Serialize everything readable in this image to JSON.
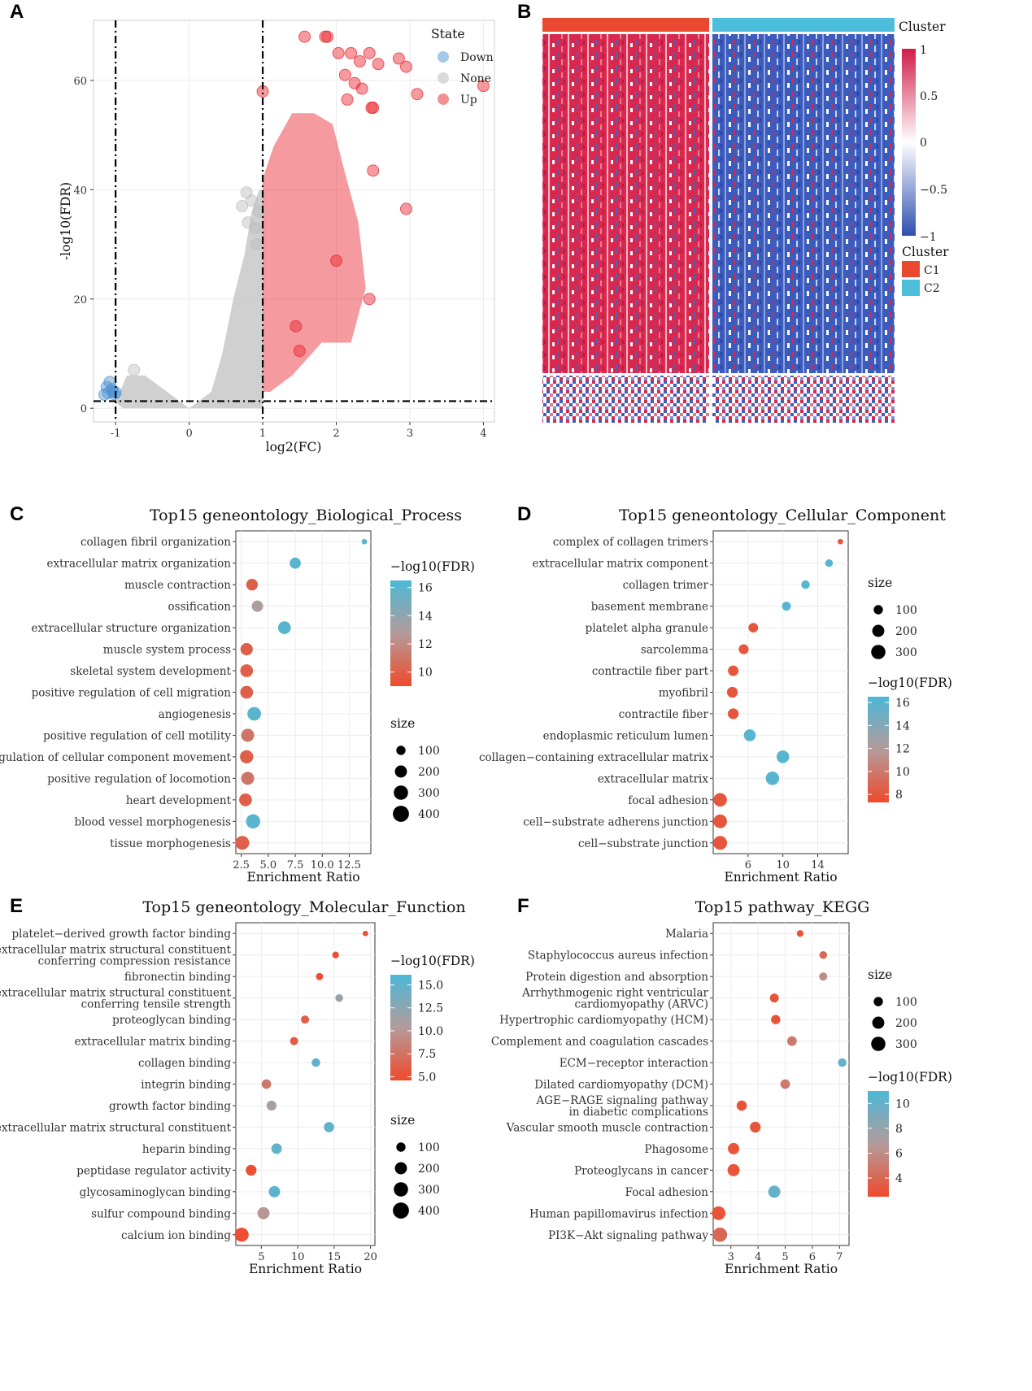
{
  "chart_data": [
    {
      "panel": "A",
      "type": "scatter",
      "title": "",
      "xlabel": "log2(FC)",
      "ylabel": "-log10(FDR)",
      "xlim": [
        -1.3,
        4.15
      ],
      "ylim": [
        -2.5,
        71
      ],
      "xticks": [
        "-1",
        "0",
        "1",
        "2",
        "3",
        "4"
      ],
      "yticks": [
        "0",
        "20",
        "40",
        "60"
      ],
      "thresholds": {
        "x": [
          -1,
          1
        ],
        "y": 1.3
      },
      "legend": {
        "title": "State",
        "position": "top-right",
        "entries": [
          {
            "label": "Down",
            "color": "#4e92d1"
          },
          {
            "label": "None",
            "color": "#bdbdbd"
          },
          {
            "label": "Up",
            "color": "#e8222a"
          }
        ]
      },
      "series": [
        {
          "name": "Down",
          "color": "#4e92d1",
          "x": [
            -1.08,
            -1.05,
            -1.1,
            -1.02,
            -1.15,
            -1.04,
            -1.12,
            -1.0
          ],
          "y": [
            4.8,
            3.5,
            2.8,
            2.6,
            2.5,
            3.1,
            3.9,
            2.9
          ]
        },
        {
          "name": "None",
          "color": "#bdbdbd",
          "x": [
            0.78,
            0.72,
            0.85,
            -0.75,
            0.92,
            0.8,
            0.9,
            0.95
          ],
          "y": [
            39.5,
            37,
            38,
            7,
            30,
            34,
            33,
            36
          ]
        },
        {
          "name": "Up",
          "color": "#e8222a",
          "x": [
            1.57,
            1.85,
            1.88,
            2.03,
            2.2,
            2.32,
            2.12,
            2.25,
            2.45,
            2.57,
            2.85,
            2.95,
            3.1,
            4.0,
            1.0,
            2.15,
            2.35,
            2.48,
            2.5,
            2.95,
            2.5,
            2.45,
            2.0,
            1.5,
            1.45
          ],
          "y": [
            68,
            68,
            68,
            65,
            65,
            63.5,
            61,
            59.5,
            65,
            63,
            64,
            62.5,
            57.5,
            59,
            58,
            56.5,
            58.5,
            55,
            55,
            36.5,
            43.5,
            20,
            27,
            10.5,
            15
          ]
        }
      ]
    },
    {
      "panel": "B",
      "type": "heatmap",
      "title": "",
      "scale": {
        "title": "Cluster",
        "ticks": [
          "1",
          "0.5",
          "0",
          "−0.5",
          "−1"
        ],
        "low": "#2e4fb0",
        "mid": "#ffffff",
        "high": "#d01c47"
      },
      "clusters": {
        "title": "Cluster",
        "entries": [
          {
            "label": "C1",
            "color": "#e8492f"
          },
          {
            "label": "C2",
            "color": "#4cbddb"
          }
        ]
      }
    },
    {
      "panel": "C",
      "type": "scatter",
      "title": "Top15 geneontology_Biological_Process",
      "xlabel": "Enrichment Ratio",
      "xticks": [
        "2.5",
        "5.0",
        "7.5",
        "10.0",
        "12.5"
      ],
      "xlim": [
        2.0,
        14.5
      ],
      "categories": [
        "collagen fibril organization",
        "extracellular matrix organization",
        "muscle contraction",
        "ossification",
        "extracellular structure organization",
        "muscle system process",
        "skeletal system development",
        "positive regulation of cell migration",
        "angiogenesis",
        "positive regulation of cell motility",
        "positive regulation of cellular component movement",
        "positive regulation of locomotion",
        "heart development",
        "blood vessel morphogenesis",
        "tissue morphogenesis"
      ],
      "values": [
        13.9,
        7.5,
        3.5,
        4.0,
        6.5,
        3.0,
        3.0,
        3.0,
        3.7,
        3.1,
        3.0,
        3.1,
        2.9,
        3.6,
        2.6
      ],
      "fdr": [
        16,
        16,
        10,
        13,
        16,
        10,
        10,
        10,
        16,
        11,
        10,
        11,
        10,
        16,
        10
      ],
      "size": [
        20,
        160,
        180,
        170,
        230,
        210,
        230,
        230,
        270,
        240,
        250,
        240,
        230,
        300,
        280
      ],
      "fdr_legend": {
        "title": "−log10(FDR)",
        "ticks": [
          "16",
          "14",
          "12",
          "10"
        ],
        "range": [
          9,
          16.5
        ]
      },
      "size_legend": {
        "title": "size",
        "labels": [
          "100",
          "200",
          "300",
          "400"
        ]
      }
    },
    {
      "panel": "D",
      "type": "scatter",
      "title": "Top15 geneontology_Cellular_Component",
      "xlabel": "Enrichment Ratio",
      "xticks": [
        "6",
        "10",
        "14"
      ],
      "xlim": [
        2.0,
        17.5
      ],
      "categories": [
        "complex of collagen trimers",
        "extracellular matrix component",
        "collagen trimer",
        "basement membrane",
        "platelet alpha granule",
        "sarcolemma",
        "contractile fiber part",
        "myofibril",
        "contractile fiber",
        "endoplasmic reticulum lumen",
        "collagen−containing extracellular matrix",
        "extracellular matrix",
        "focal adhesion",
        "cell−substrate adherens junction",
        "cell−substrate junction"
      ],
      "values": [
        16.6,
        15.3,
        12.6,
        10.4,
        6.6,
        5.5,
        4.3,
        4.2,
        4.3,
        6.2,
        10.0,
        8.8,
        2.8,
        2.8,
        2.8
      ],
      "fdr": [
        8,
        16,
        16,
        16,
        8,
        8,
        8,
        8,
        8,
        16,
        16,
        16,
        8,
        8,
        8
      ],
      "size": [
        20,
        60,
        80,
        90,
        110,
        120,
        140,
        150,
        150,
        190,
        220,
        260,
        260,
        270,
        280
      ],
      "fdr_legend": {
        "title": "−log10(FDR)",
        "ticks": [
          "16",
          "14",
          "12",
          "10",
          "8"
        ],
        "range": [
          7.3,
          16.5
        ]
      },
      "size_legend": {
        "title": "size",
        "labels": [
          "100",
          "200",
          "300"
        ]
      }
    },
    {
      "panel": "E",
      "type": "scatter",
      "title": "Top15 geneontology_Molecular_Function",
      "xlabel": "Enrichment Ratio",
      "xticks": [
        "5",
        "10",
        "15",
        "20"
      ],
      "xlim": [
        1.5,
        20.6
      ],
      "categories": [
        "platelet−derived growth factor binding",
        "extracellular matrix structural constituent\nconferring compression resistance",
        "fibronectin binding",
        "extracellular matrix structural constituent\nconferring tensile strength",
        "proteoglycan binding",
        "extracellular matrix binding",
        "collagen binding",
        "integrin binding",
        "growth factor binding",
        "extracellular matrix structural constituent",
        "heparin binding",
        "peptidase regulator activity",
        "glycosaminoglycan binding",
        "sulfur compound binding",
        "calcium ion binding"
      ],
      "values": [
        19.3,
        15.2,
        13.0,
        15.7,
        11.0,
        9.5,
        12.5,
        5.7,
        6.4,
        14.3,
        7.1,
        3.6,
        6.8,
        5.3,
        2.3
      ],
      "fdr": [
        5,
        5,
        5,
        12,
        6,
        6,
        15,
        8,
        11,
        15,
        15,
        5,
        15,
        10,
        5
      ],
      "size": [
        20,
        40,
        50,
        60,
        70,
        70,
        80,
        110,
        120,
        130,
        140,
        150,
        170,
        200,
        290
      ],
      "fdr_legend": {
        "title": "−log10(FDR)",
        "ticks": [
          "15.0",
          "12.5",
          "10.0",
          "7.5",
          "5.0"
        ],
        "range": [
          4.6,
          16.1
        ]
      },
      "size_legend": {
        "title": "size",
        "labels": [
          "100",
          "200",
          "300",
          "400"
        ]
      }
    },
    {
      "panel": "F",
      "type": "scatter",
      "title": "Top15 pathway_KEGG",
      "xlabel": "Enrichment Ratio",
      "xticks": [
        "3",
        "4",
        "5",
        "6",
        "7"
      ],
      "xlim": [
        2.35,
        7.35
      ],
      "categories": [
        "Malaria",
        "Staphylococcus aureus infection",
        "Protein digestion and absorption",
        "Arrhythmogenic right ventricular\ncardiomyopathy (ARVC)",
        "Hypertrophic cardiomyopathy (HCM)",
        "Complement and coagulation cascades",
        "ECM−receptor interaction",
        "Dilated cardiomyopathy (DCM)",
        "AGE−RAGE signaling pathway\nin diabetic complications",
        "Vascular smooth muscle contraction",
        "Phagosome",
        "Proteoglycans in cancer",
        "Focal adhesion",
        "Human papillomavirus infection",
        "PI3K−Akt signaling pathway"
      ],
      "values": [
        5.55,
        6.4,
        6.4,
        4.6,
        4.65,
        5.25,
        7.1,
        5.0,
        3.4,
        3.9,
        3.1,
        3.1,
        4.6,
        2.55,
        2.6
      ],
      "fdr": [
        3,
        4,
        6,
        3,
        3,
        5,
        10,
        5,
        3,
        3,
        3,
        3,
        10,
        3,
        4
      ],
      "size": [
        40,
        60,
        70,
        90,
        100,
        110,
        80,
        110,
        130,
        150,
        170,
        200,
        200,
        270,
        300
      ],
      "fdr_legend": {
        "title": "−log10(FDR)",
        "ticks": [
          "10",
          "8",
          "6",
          "4"
        ],
        "range": [
          2.5,
          11.0
        ]
      },
      "size_legend": {
        "title": "size",
        "labels": [
          "100",
          "200",
          "300"
        ]
      }
    }
  ],
  "colors": {
    "low_fdr": "#e8462c",
    "high_fdr": "#4cb8d6",
    "mid_fdr": "#a89a9a"
  }
}
